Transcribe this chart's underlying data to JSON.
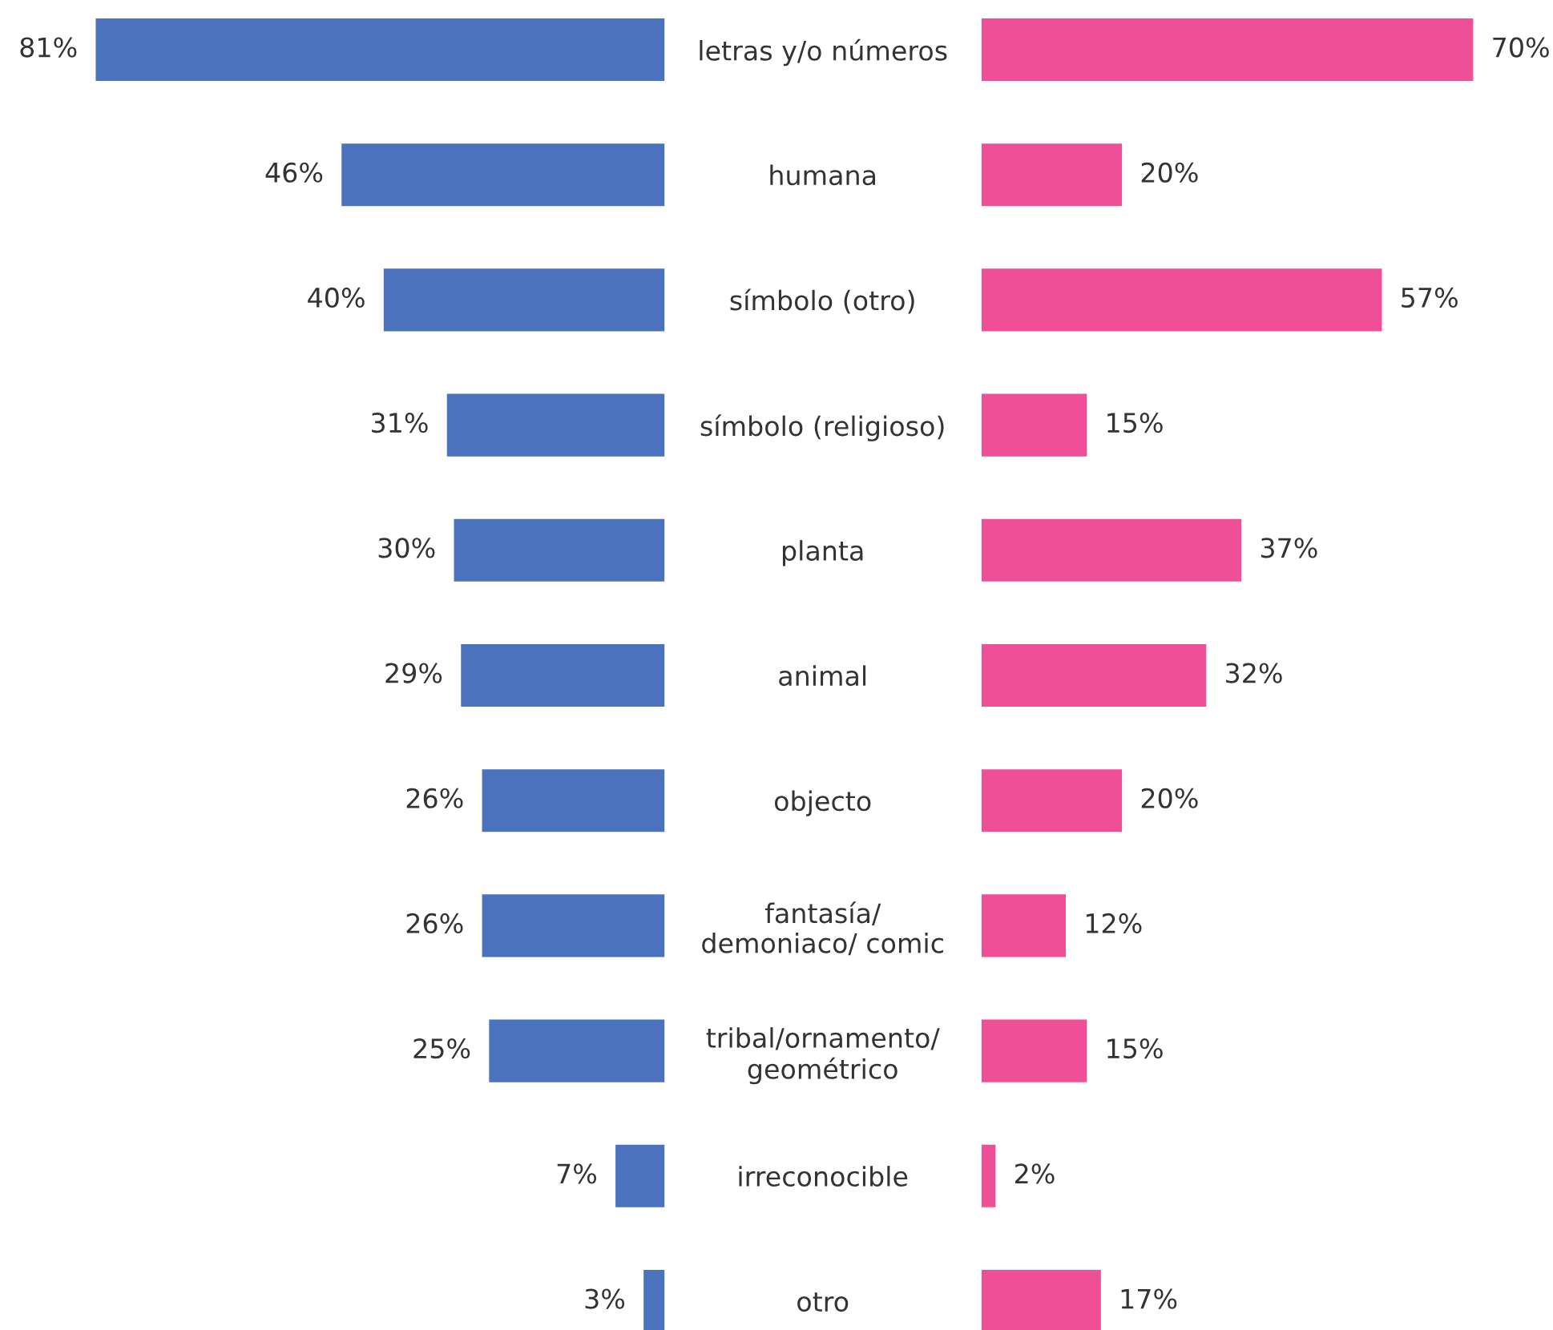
{
  "chart_data": [
    {
      "type": "bar",
      "orientation": "horizontal",
      "categories": [
        "letras y/o números",
        "humana",
        "símbolo (otro)",
        "símbolo (religioso)",
        "planta",
        "animal",
        "objecto",
        "fantasía/\ndemoniaco/ comic",
        "tribal/ornamento/\ngeométrico",
        "irreconocible",
        "otro"
      ],
      "series": [
        {
          "color": "#4a72bd",
          "values": [
            81,
            46,
            40,
            31,
            30,
            29,
            26,
            26,
            25,
            7,
            3
          ],
          "value_labels": [
            "81%",
            "46%",
            "40%",
            "31%",
            "30%",
            "29%",
            "26%",
            "26%",
            "25%",
            "7%",
            "3%"
          ]
        }
      ]
    },
    {
      "type": "bar",
      "orientation": "horizontal",
      "categories": [
        null,
        null,
        null,
        null,
        null,
        null,
        null,
        null,
        null,
        null,
        null
      ],
      "series": [
        {
          "color": "#ee4f97",
          "values": [
            70,
            20,
            57,
            15,
            37,
            32,
            20,
            12,
            15,
            2,
            17
          ],
          "value_labels": [
            "70%",
            "20%",
            "57%",
            "15%",
            "37%",
            "32%",
            "20%",
            "12%",
            "15%",
            "2%",
            "17%"
          ]
        }
      ]
    }
  ]
}
